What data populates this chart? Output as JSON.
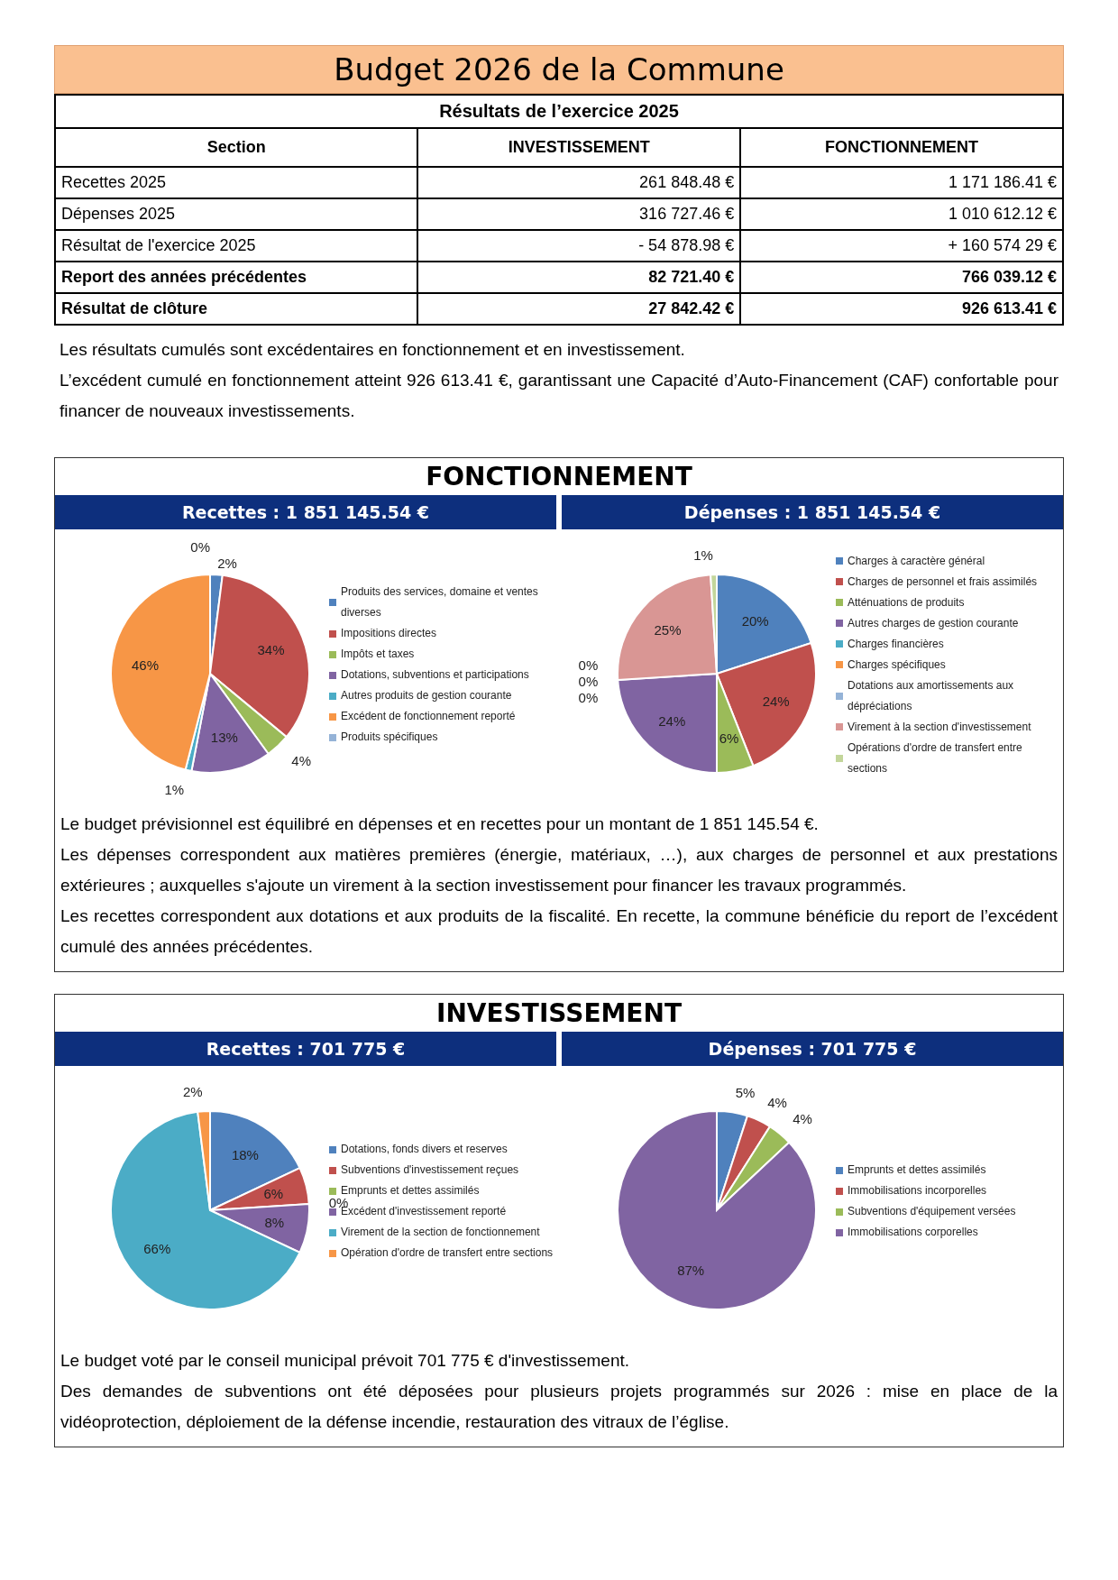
{
  "chart_data": [
    {
      "type": "other",
      "title": "Budget 2026 de la Commune",
      "subtitle": "Résultats de l’exercice 2025",
      "categories": [
        "Section",
        "INVESTISSEMENT",
        "FONCTIONNEMENT"
      ],
      "y_categories": [
        "Recettes 2025",
        "Dépenses 2025",
        "Résultat de l'exercice 2025",
        "Report des années précédentes",
        "Résultat de clôture"
      ],
      "cell_labels": [
        [
          "261 848.48 €",
          "1 171 186.41 €"
        ],
        [
          "316 727.46 €",
          "1 010 612.12 €"
        ],
        [
          "- 54 878.98 €",
          "+ 160 574 29 €"
        ],
        [
          "82 721.40 €",
          "766 039.12 €"
        ],
        [
          "27 842.42 €",
          "926 613.41 €"
        ]
      ],
      "annotations": [
        "Les résultats cumulés sont excédentaires en fonctionnement et en investissement.",
        "L’excédent cumulé en fonctionnement atteint 926 613.41 €, garantissant une Capacité d’Auto-Financement (CAF) confortable pour financer de nouveaux investissements."
      ]
    },
    {
      "type": "pie",
      "title": "FONCTIONNEMENT",
      "subtitle": "Recettes : 1 851 145.54 €",
      "legend": "right",
      "categories": [
        "Produits des services, domaine et ventes diverses",
        "Impositions directes",
        "Impôts et taxes",
        "Dotations, subventions et participations",
        "Autres produits de gestion courante",
        "Excédent de fonctionnement reporté",
        "Produits spécifiques"
      ],
      "values": [
        2,
        34,
        4,
        13,
        1,
        46,
        0
      ],
      "value_labels": [
        "2%",
        "34%",
        "4%",
        "13%",
        "1%",
        "46%",
        "0%"
      ],
      "colors": [
        "#4f81bd",
        "#c0504d",
        "#9bbb59",
        "#8064a2",
        "#4bacc6",
        "#f79646",
        "#95b3d7"
      ]
    },
    {
      "type": "pie",
      "subtitle": "Dépenses : 1 851 145.54 €",
      "legend": "right",
      "categories": [
        "Charges à caractère général",
        "Charges de personnel et frais assimilés",
        "Atténuations de produits",
        "Autres charges de gestion courante",
        "Charges financières",
        "Charges spécifiques",
        "Dotations aux amortissements aux dépréciations",
        "Virement à la section d'investissement",
        "Opérations d'ordre de transfert entre sections"
      ],
      "values": [
        20,
        24,
        6,
        24,
        0,
        0,
        0,
        25,
        1
      ],
      "value_labels": [
        "20%",
        "24%",
        "6%",
        "24%",
        "0%",
        "0%",
        "0%",
        "25%",
        "1%"
      ],
      "colors": [
        "#4f81bd",
        "#c0504d",
        "#9bbb59",
        "#8064a2",
        "#4bacc6",
        "#f79646",
        "#95b3d7",
        "#d99694",
        "#c3d69b"
      ],
      "annotations": [
        "Le budget prévisionnel est équilibré en dépenses et en recettes pour un montant de 1 851 145.54 €.",
        "Les dépenses correspondent aux matières premières (énergie, matériaux, …), aux charges de personnel et aux prestations extérieures ; auxquelles s'ajoute un virement à la section investissement pour financer les travaux programmés.",
        "Les recettes correspondent aux dotations et aux produits de la fiscalité. En recette, la commune bénéficie du report de l’excédent cumulé des années précédentes."
      ]
    },
    {
      "type": "pie",
      "title": "INVESTISSEMENT",
      "subtitle": "Recettes : 701 775 €",
      "legend": "right",
      "categories": [
        "Dotations, fonds divers et reserves",
        "Subventions d'investissement reçues",
        "Emprunts et dettes assimilés",
        "Excédent d'investissement reporté",
        "Virement de la section de fonctionnement",
        "Opération d'ordre de transfert entre sections"
      ],
      "values": [
        18,
        6,
        0,
        8,
        66,
        2
      ],
      "value_labels": [
        "18%",
        "6%",
        "0%",
        "8%",
        "66%",
        "2%"
      ],
      "colors": [
        "#4f81bd",
        "#c0504d",
        "#9bbb59",
        "#8064a2",
        "#4bacc6",
        "#f79646"
      ]
    },
    {
      "type": "pie",
      "subtitle": "Dépenses : 701 775 €",
      "legend": "right",
      "categories": [
        "Emprunts et dettes assimilés",
        "Immobilisations incorporelles",
        "Subventions d'équipement versées",
        "Immobilisations corporelles"
      ],
      "values": [
        5,
        4,
        4,
        87
      ],
      "value_labels": [
        "5%",
        "4%",
        "4%",
        "87%"
      ],
      "colors": [
        "#4f81bd",
        "#c0504d",
        "#9bbb59",
        "#8064a2"
      ],
      "annotations": [
        "Le budget voté par le conseil municipal prévoit 701 775 € d'investissement.",
        "Des demandes de subventions ont été déposées pour plusieurs projets programmés sur 2026 : mise en place de la vidéoprotection, déploiement de la défense incendie, restauration des vitraux de l’église."
      ]
    }
  ]
}
